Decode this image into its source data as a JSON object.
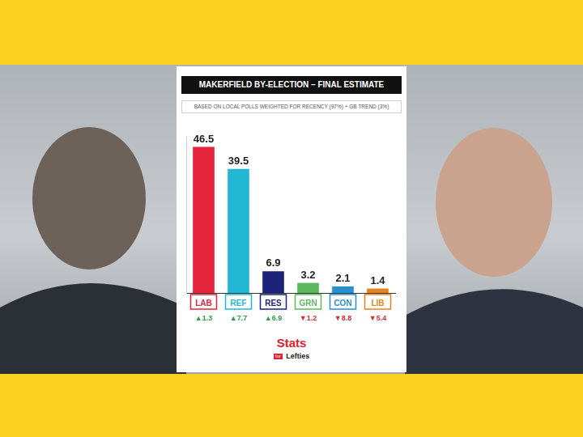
{
  "chart_data": {
    "type": "bar",
    "title": "MAKERFIELD BY-ELECTION – FINAL ESTIMATE",
    "subtitle": "BASED ON LOCAL POLLS WEIGHTED FOR RECENCY (97%) + GB TREND (3%)",
    "categories": [
      "LAB",
      "REF",
      "RES",
      "GRN",
      "CON",
      "LIB"
    ],
    "values": [
      46.5,
      39.5,
      6.9,
      3.2,
      2.1,
      1.4
    ],
    "colors": [
      "#e4243b",
      "#22b8d4",
      "#1c2378",
      "#5cb85c",
      "#2a8fd0",
      "#e8821e"
    ],
    "changes": [
      1.3,
      7.7,
      6.9,
      -1.2,
      -8.8,
      -5.4
    ],
    "change_labels": [
      "▲1.3",
      "▲7.7",
      "▲6.9",
      "▼1.2",
      "▼8.8",
      "▼5.4"
    ],
    "ylim": [
      0,
      50
    ],
    "grid": false,
    "data_labels": true,
    "tick_labels": "x",
    "logo": [
      "Stats",
      "for",
      "Lefties"
    ]
  }
}
